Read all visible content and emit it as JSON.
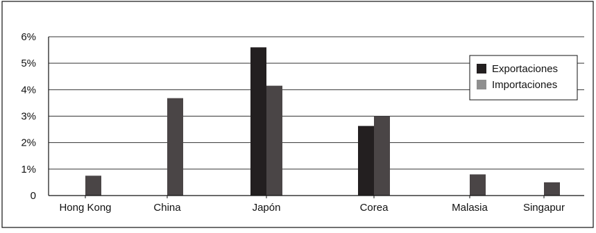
{
  "chart_data": {
    "type": "bar",
    "categories": [
      "Hong Kong",
      "China",
      "Japón",
      "Corea",
      "Malasia",
      "Singapur"
    ],
    "series": [
      {
        "name": "Exportaciones",
        "color": "#231f20",
        "values": [
          0,
          0,
          5.6,
          2.63,
          0,
          0
        ]
      },
      {
        "name": "Importaciones",
        "color": "#4a4546",
        "values": [
          0.75,
          3.68,
          4.15,
          3.0,
          0.8,
          0.5
        ]
      }
    ],
    "y_ticks": [
      "0",
      "1%",
      "2%",
      "3%",
      "4%",
      "5%",
      "6%"
    ],
    "ylim": [
      0,
      6
    ],
    "grid": true,
    "legend": {
      "placement": "top-right",
      "items": [
        {
          "label": "Exportaciones",
          "color": "#231f20"
        },
        {
          "label": "Importaciones",
          "color": "#8f8f8f"
        }
      ]
    },
    "colors": {
      "frame": "#111111",
      "grid": "#333333",
      "export": "#231f20",
      "import": "#4a4546",
      "legend_export": "#231f20",
      "legend_import": "#8f8f8f"
    }
  }
}
